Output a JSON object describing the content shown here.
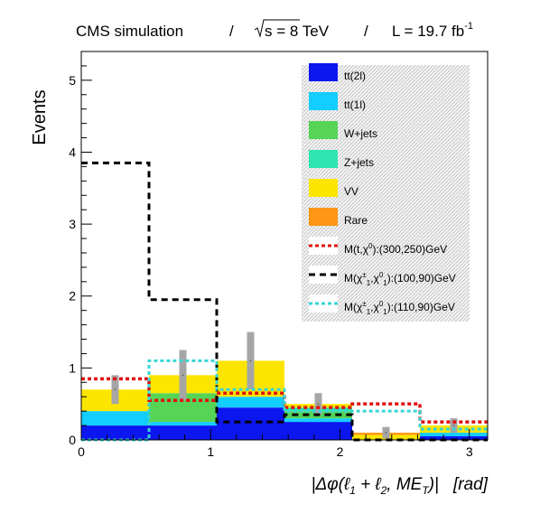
{
  "header": {
    "left": "CMS simulation",
    "sep": "/",
    "energy": "s = 8 TeV",
    "lumi": "L = 19.7 fb",
    "lumi_exp": "-1"
  },
  "chart_data": {
    "type": "bar",
    "subtype": "stacked histogram with overlaid step lines",
    "title": "",
    "xlabel": "|Δφ(ℓ1 + ℓ2, MET)|   [rad]",
    "ylabel": "Events",
    "xlim": [
      0,
      3.1416
    ],
    "ylim": [
      0,
      5.4
    ],
    "x_ticks": [
      0,
      1,
      2,
      3
    ],
    "y_ticks": [
      0,
      1,
      2,
      3,
      4,
      5
    ],
    "bin_edges": [
      0,
      0.5236,
      1.0472,
      1.5708,
      2.0944,
      2.618,
      3.1416
    ],
    "stacked_series": [
      {
        "name": "tt(2l)",
        "color": "#0c16ef",
        "values": [
          0.2,
          0.2,
          0.45,
          0.25,
          0.0,
          0.05
        ]
      },
      {
        "name": "tt(1l)",
        "color": "#14cdff",
        "values": [
          0.2,
          0.05,
          0.15,
          0.05,
          0.0,
          0.05
        ]
      },
      {
        "name": "W+jets",
        "color": "#56d456",
        "values": [
          0.0,
          0.4,
          0.0,
          0.1,
          0.0,
          0.0
        ]
      },
      {
        "name": "Z+jets",
        "color": "#2de6b2",
        "values": [
          0.0,
          0.0,
          0.0,
          0.05,
          0.0,
          0.0
        ]
      },
      {
        "name": "VV",
        "color": "#fce600",
        "values": [
          0.3,
          0.25,
          0.5,
          0.05,
          0.07,
          0.1
        ]
      },
      {
        "name": "Rare",
        "color": "#ff9615",
        "values": [
          0.0,
          0.0,
          0.0,
          0.0,
          0.03,
          0.0
        ]
      }
    ],
    "uncertainty": [
      0.2,
      0.35,
      0.4,
      0.15,
      0.08,
      0.1
    ],
    "signal_lines": [
      {
        "name": "M(t,χ0):(300,250)GeV",
        "color": "#e01010",
        "style": "dotted",
        "values": [
          0.85,
          0.55,
          0.65,
          0.45,
          0.5,
          0.25
        ]
      },
      {
        "name": "M(χ±1,χ01):(100,90)GeV",
        "color": "#000000",
        "style": "dashed",
        "values": [
          3.85,
          1.95,
          0.25,
          0.35,
          0.0,
          0.0
        ]
      },
      {
        "name": "M(χ±1,χ01):(110,90)GeV",
        "color": "#38d6d6",
        "style": "dotted",
        "values": [
          0.0,
          1.1,
          0.7,
          0.4,
          0.4,
          0.15
        ]
      }
    ],
    "legend_position": "top-right",
    "legend_labels": {
      "l0": "tt(2l)",
      "l1": "tt(1l)",
      "l2": "W+jets",
      "l3": "Z+jets",
      "l4": "VV",
      "l5": "Rare",
      "s0_pre": "M(",
      "s0_p1": "t",
      "s0_mid": ",",
      "s0_p2": "χ",
      "s0_sup": "0",
      "s0_post": "):(300,250)GeV",
      "s1_pre": "M(",
      "s1_p1": "χ",
      "s1_sup1": "±",
      "s1_sub1": "1",
      "s1_mid": ",",
      "s1_p2": "χ",
      "s1_sup2": "0",
      "s1_sub2": "1",
      "s1_post": "):(100,90)GeV",
      "s2_pre": "M(",
      "s2_p1": "χ",
      "s2_sup1": "±",
      "s2_sub1": "1",
      "s2_mid": ",",
      "s2_p2": "χ",
      "s2_sup2": "0",
      "s2_sub2": "1",
      "s2_post": "):(110,90)GeV"
    },
    "xlabel_parts": {
      "open": "|Δφ(ℓ",
      "sub1": "1",
      "plus": " + ℓ",
      "sub2": "2",
      "comma": ", ME",
      "subT": "T",
      "close": ")|",
      "unit": "[rad]"
    }
  }
}
